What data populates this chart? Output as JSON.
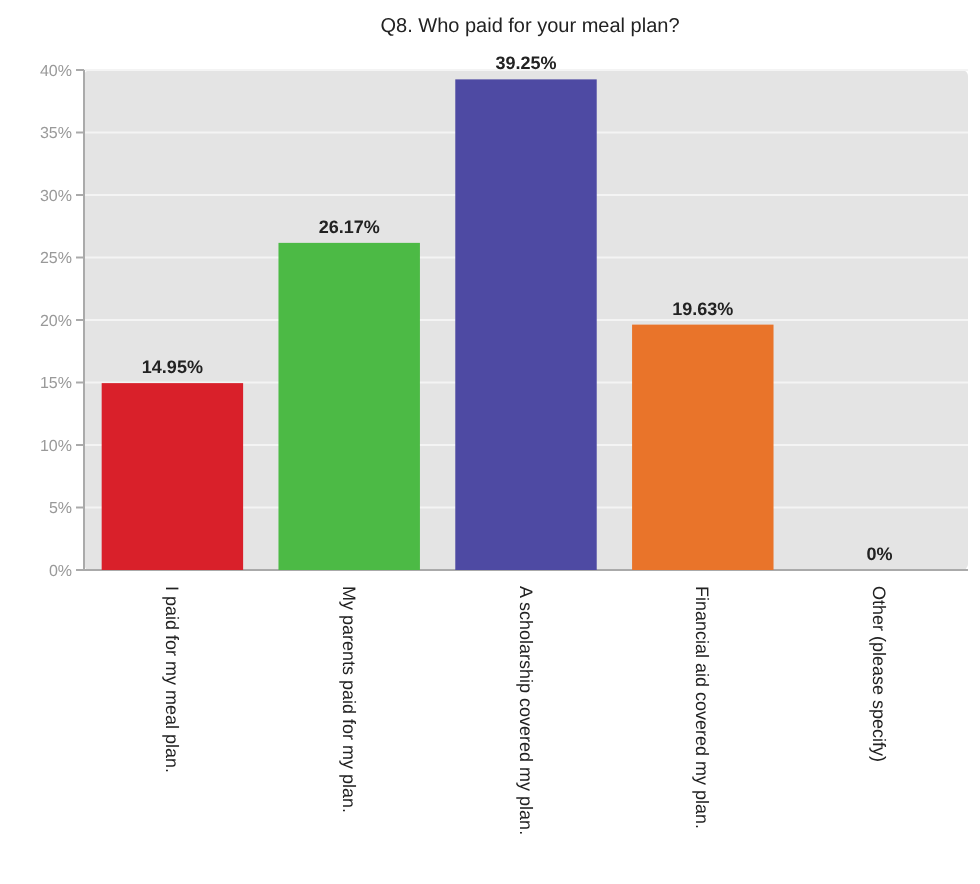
{
  "chart_data": {
    "type": "bar",
    "title": "Q8. Who paid for your meal plan?",
    "categories": [
      "I paid for my meal plan.",
      "My parents paid for my plan.",
      "A scholarship covered my plan.",
      "Financial aid covered my plan.",
      "Other (please specify)"
    ],
    "values": [
      14.95,
      26.17,
      39.25,
      19.63,
      0
    ],
    "colors": [
      "#d9202a",
      "#4cba45",
      "#4e4aa3",
      "#e9742a",
      "#cccccc"
    ],
    "value_labels": [
      "14.95%",
      "26.17%",
      "39.25%",
      "19.63%",
      "0%"
    ],
    "ylim": [
      0,
      40
    ],
    "yticks": [
      {
        "value": 0,
        "label": "0%"
      },
      {
        "value": 5,
        "label": "5%"
      },
      {
        "value": 10,
        "label": "10%"
      },
      {
        "value": 15,
        "label": "15%"
      },
      {
        "value": 20,
        "label": "20%"
      },
      {
        "value": 25,
        "label": "25%"
      },
      {
        "value": 30,
        "label": "30%"
      },
      {
        "value": 35,
        "label": "35%"
      },
      {
        "value": 40,
        "label": "40%"
      }
    ],
    "grid": "y"
  }
}
